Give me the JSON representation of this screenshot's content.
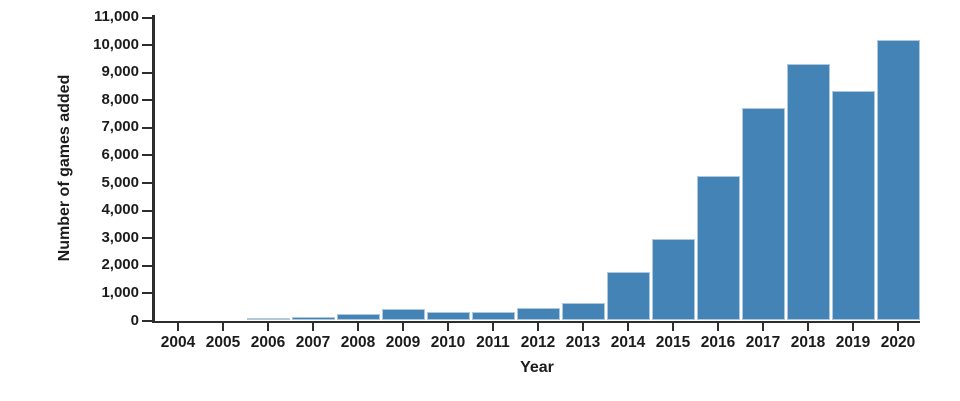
{
  "chart_data": {
    "type": "bar",
    "title": "",
    "xlabel": "Year",
    "ylabel": "Number of games added",
    "categories": [
      "2004",
      "2005",
      "2006",
      "2007",
      "2008",
      "2009",
      "2010",
      "2011",
      "2012",
      "2013",
      "2014",
      "2015",
      "2016",
      "2017",
      "2018",
      "2019",
      "2020"
    ],
    "values": [
      10,
      20,
      90,
      140,
      230,
      400,
      310,
      310,
      450,
      620,
      1750,
      2950,
      5250,
      7700,
      9300,
      8300,
      10150
    ],
    "ylim": [
      0,
      11000
    ],
    "y_tick_values": [
      0,
      1000,
      2000,
      3000,
      4000,
      5000,
      6000,
      7000,
      8000,
      9000,
      10000,
      11000
    ],
    "y_tick_labels": [
      "0",
      "1,000",
      "2,000",
      "3,000",
      "4,000",
      "5,000",
      "6,000",
      "7,000",
      "8,000",
      "9,000",
      "10,000",
      "11,000"
    ],
    "grid": false,
    "legend": "none",
    "colors": {
      "bar_fill": "#4483b5",
      "bar_border": "#aec9de",
      "axis": "#2d2d2d",
      "text": "#1c1c1c",
      "background": "#ffffff"
    }
  }
}
